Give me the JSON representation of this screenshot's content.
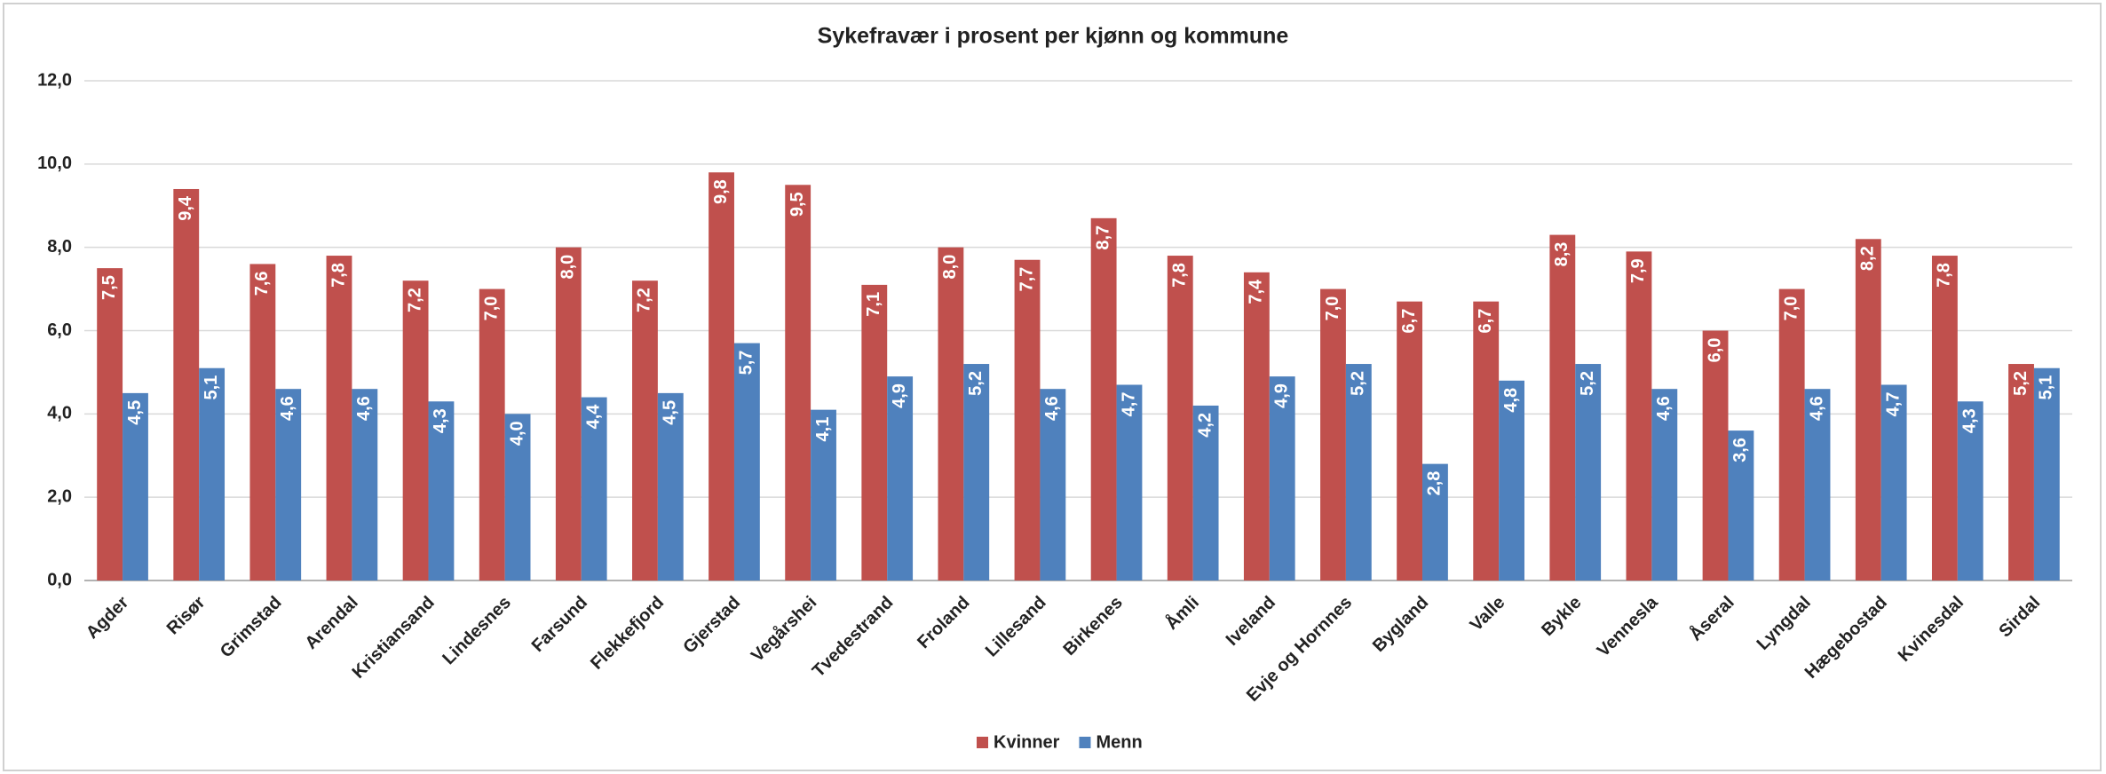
{
  "chart_data": {
    "type": "bar",
    "title": "Sykefravær i prosent per kjønn og kommune",
    "categories": [
      "Agder",
      "Risør",
      "Grimstad",
      "Arendal",
      "Kristiansand",
      "Lindesnes",
      "Farsund",
      "Flekkefjord",
      "Gjerstad",
      "Vegårshei",
      "Tvedestrand",
      "Froland",
      "Lillesand",
      "Birkenes",
      "Åmli",
      "Iveland",
      "Evje og Hornnes",
      "Bygland",
      "Valle",
      "Bykle",
      "Vennesla",
      "Åseral",
      "Lyngdal",
      "Hægebostad",
      "Kvinesdal",
      "Sirdal"
    ],
    "series": [
      {
        "name": "Kvinner",
        "color": "#c0504d",
        "values": [
          7.5,
          9.4,
          7.6,
          7.8,
          7.2,
          7.0,
          8.0,
          7.2,
          9.8,
          9.5,
          7.1,
          8.0,
          7.7,
          8.7,
          7.8,
          7.4,
          7.0,
          6.7,
          6.7,
          8.3,
          7.9,
          6.0,
          7.0,
          8.2,
          7.8,
          5.2
        ],
        "value_labels": [
          "7,5",
          "9,4",
          "7,6",
          "7,8",
          "7,2",
          "7,0",
          "8,0",
          "7,2",
          "9,8",
          "9,5",
          "7,1",
          "8,0",
          "7,7",
          "8,7",
          "7,8",
          "7,4",
          "7,0",
          "6,7",
          "6,7",
          "8,3",
          "7,9",
          "6,0",
          "7,0",
          "8,2",
          "7,8",
          "5,2"
        ]
      },
      {
        "name": "Menn",
        "color": "#4f81bd",
        "values": [
          4.5,
          5.1,
          4.6,
          4.6,
          4.3,
          4.0,
          4.4,
          4.5,
          5.7,
          4.1,
          4.9,
          5.2,
          4.6,
          4.7,
          4.2,
          4.9,
          5.2,
          2.8,
          4.8,
          5.2,
          4.6,
          3.6,
          4.6,
          4.7,
          4.3,
          5.1
        ],
        "value_labels": [
          "4,5",
          "5,1",
          "4,6",
          "4,6",
          "4,3",
          "4,0",
          "4,4",
          "4,5",
          "5,7",
          "4,1",
          "4,9",
          "5,2",
          "4,6",
          "4,7",
          "4,2",
          "4,9",
          "5,2",
          "2,8",
          "4,8",
          "5,2",
          "4,6",
          "3,6",
          "4,6",
          "4,7",
          "4,3",
          "5,1"
        ]
      }
    ],
    "ylim": [
      0,
      12
    ],
    "yticks": [
      {
        "value": 0,
        "label": "0,0"
      },
      {
        "value": 2,
        "label": "2,0"
      },
      {
        "value": 4,
        "label": "4,0"
      },
      {
        "value": 6,
        "label": "6,0"
      },
      {
        "value": 8,
        "label": "8,0"
      },
      {
        "value": 10,
        "label": "10,0"
      },
      {
        "value": 12,
        "label": "12,0"
      }
    ],
    "grid": true,
    "legend": "bottom"
  }
}
